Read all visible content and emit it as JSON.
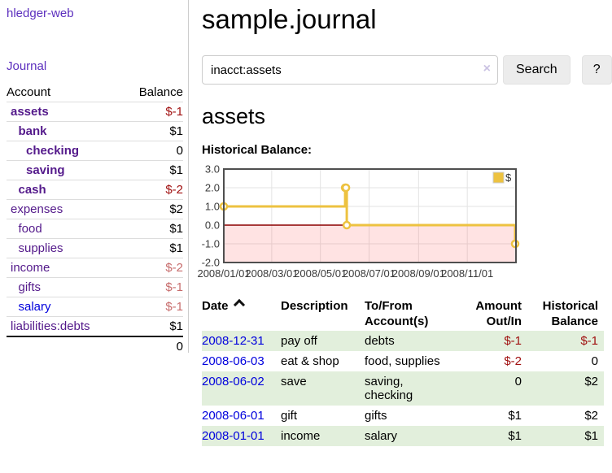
{
  "app": {
    "brand": "hledger-web",
    "nav_journal": "Journal"
  },
  "icons": {
    "sort_ascending": "chevron-up",
    "clear_search": "×",
    "legend_swatch": "yellow-square"
  },
  "colors": {
    "link_purple": "#5c2fbe",
    "account_purple": "#541a8b",
    "link_blue": "#0000dd",
    "negative_strong": "#a01010",
    "negative_soft": "#c76c6c",
    "row_green": "#e2efdc",
    "chart_line": "#edc240",
    "chart_negative_region": "rgba(255,80,80,0.16)",
    "chart_zero_line": "#8b0000"
  },
  "sidebar": {
    "accounts_header": {
      "account": "Account",
      "balance": "Balance"
    },
    "accounts": [
      {
        "name": "assets",
        "indent": 0,
        "bold": true,
        "link_color": "purple",
        "balance": "$-1",
        "balance_style": "neg-strong"
      },
      {
        "name": "bank",
        "indent": 1,
        "bold": true,
        "link_color": "purple",
        "balance": "$1",
        "balance_style": "pos"
      },
      {
        "name": "checking",
        "indent": 2,
        "bold": true,
        "link_color": "purple",
        "balance": "0",
        "balance_style": "pos"
      },
      {
        "name": "saving",
        "indent": 2,
        "bold": true,
        "link_color": "purple",
        "balance": "$1",
        "balance_style": "pos"
      },
      {
        "name": "cash",
        "indent": 1,
        "bold": true,
        "link_color": "purple",
        "balance": "$-2",
        "balance_style": "neg-strong"
      },
      {
        "name": "expenses",
        "indent": 0,
        "bold": false,
        "link_color": "purple",
        "balance": "$2",
        "balance_style": "pos"
      },
      {
        "name": "food",
        "indent": 1,
        "bold": false,
        "link_color": "purple",
        "balance": "$1",
        "balance_style": "pos"
      },
      {
        "name": "supplies",
        "indent": 1,
        "bold": false,
        "link_color": "purple",
        "balance": "$1",
        "balance_style": "pos"
      },
      {
        "name": "income",
        "indent": 0,
        "bold": false,
        "link_color": "purple",
        "balance": "$-2",
        "balance_style": "neg-soft"
      },
      {
        "name": "gifts",
        "indent": 1,
        "bold": false,
        "link_color": "purple",
        "balance": "$-1",
        "balance_style": "neg-soft"
      },
      {
        "name": "salary",
        "indent": 1,
        "bold": false,
        "link_color": "blue",
        "balance": "$-1",
        "balance_style": "neg-soft"
      },
      {
        "name": "liabilities:debts",
        "indent": 0,
        "bold": false,
        "link_color": "purple",
        "balance": "$1",
        "balance_style": "pos"
      }
    ],
    "total": "0"
  },
  "header": {
    "title": "sample.journal"
  },
  "search": {
    "value": "inacct:assets",
    "clear_icon": "×",
    "button": "Search",
    "help_button": "?"
  },
  "account_page": {
    "heading": "assets",
    "chart_label": "Historical Balance:"
  },
  "chart_data": {
    "type": "line",
    "step": true,
    "title": "Historical Balance",
    "legend": "$",
    "legend_position": "top-right",
    "grid": true,
    "x_range": [
      "2008-01-01",
      "2009-01-01"
    ],
    "ylim": [
      -2,
      3
    ],
    "y_ticks": [
      3.0,
      2.0,
      1.0,
      0.0,
      -1.0,
      -2.0
    ],
    "x_ticks": [
      "2008/01/01",
      "2008/03/01",
      "2008/05/01",
      "2008/07/01",
      "2008/09/01",
      "2008/11/01"
    ],
    "series": [
      {
        "name": "$",
        "color": "#edc240",
        "points": [
          [
            "2008-01-01",
            1
          ],
          [
            "2008-06-01",
            2
          ],
          [
            "2008-06-02",
            2
          ],
          [
            "2008-06-03",
            0
          ],
          [
            "2008-12-31",
            -1
          ]
        ]
      }
    ]
  },
  "register": {
    "headers": {
      "date": "Date",
      "description": "Description",
      "accounts": "To/From Account(s)",
      "amount": "Amount Out/In",
      "balance": "Historical Balance"
    },
    "rows": [
      {
        "date": "2008-12-31",
        "description": "pay off",
        "accounts": "debts",
        "amount": "$-1",
        "amount_neg": true,
        "balance": "$-1",
        "balance_neg": true
      },
      {
        "date": "2008-06-03",
        "description": "eat & shop",
        "accounts": "food, supplies",
        "amount": "$-2",
        "amount_neg": true,
        "balance": "0",
        "balance_neg": false
      },
      {
        "date": "2008-06-02",
        "description": "save",
        "accounts": "saving, checking",
        "amount": "0",
        "amount_neg": false,
        "balance": "$2",
        "balance_neg": false
      },
      {
        "date": "2008-06-01",
        "description": "gift",
        "accounts": "gifts",
        "amount": "$1",
        "amount_neg": false,
        "balance": "$2",
        "balance_neg": false
      },
      {
        "date": "2008-01-01",
        "description": "income",
        "accounts": "salary",
        "amount": "$1",
        "amount_neg": false,
        "balance": "$1",
        "balance_neg": false
      }
    ]
  }
}
